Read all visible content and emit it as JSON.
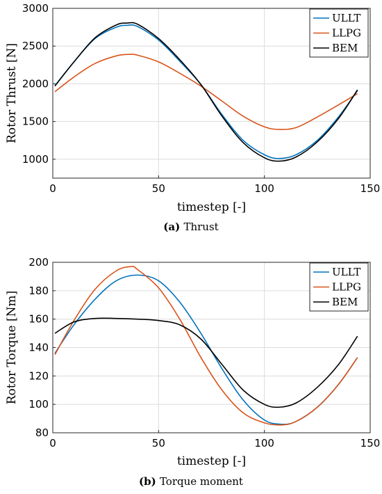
{
  "chart_data": [
    {
      "type": "line",
      "caption_id": "a",
      "caption_text": "Thrust",
      "xlabel": "timestep [-]",
      "ylabel": "Rotor Thrust [N]",
      "xlim": [
        0,
        150
      ],
      "ylim": [
        750,
        3000
      ],
      "xticks": [
        0,
        50,
        100,
        150
      ],
      "yticks": [
        1000,
        1500,
        2000,
        2500,
        3000
      ],
      "grid": true,
      "legend_position": "top-right",
      "series": [
        {
          "name": "ULLT",
          "color": "#0072BD",
          "x": [
            1,
            10,
            20,
            30,
            35,
            40,
            50,
            60,
            70,
            80,
            90,
            100,
            107,
            115,
            125,
            135,
            144
          ],
          "y": [
            1975,
            2290,
            2600,
            2750,
            2775,
            2760,
            2580,
            2300,
            1990,
            1590,
            1250,
            1060,
            1010,
            1060,
            1250,
            1560,
            1910
          ]
        },
        {
          "name": "LLPG",
          "color": "#D95319",
          "x": [
            1,
            10,
            20,
            30,
            36,
            40,
            50,
            60,
            70,
            80,
            90,
            100,
            107,
            115,
            125,
            135,
            144
          ],
          "y": [
            1895,
            2090,
            2270,
            2370,
            2390,
            2380,
            2290,
            2140,
            1970,
            1770,
            1570,
            1430,
            1395,
            1420,
            1560,
            1720,
            1870
          ]
        },
        {
          "name": "BEM",
          "color": "#000000",
          "x": [
            1,
            10,
            20,
            30,
            35,
            40,
            50,
            60,
            70,
            80,
            90,
            100,
            107,
            115,
            125,
            135,
            144
          ],
          "y": [
            1970,
            2290,
            2610,
            2780,
            2805,
            2790,
            2600,
            2320,
            1990,
            1570,
            1220,
            1020,
            975,
            1030,
            1230,
            1540,
            1920
          ]
        }
      ]
    },
    {
      "type": "line",
      "caption_id": "b",
      "caption_text": "Torque moment",
      "xlabel": "timestep [-]",
      "ylabel": "Rotor Torque [Nm]",
      "xlim": [
        0,
        150
      ],
      "ylim": [
        80,
        200
      ],
      "xticks": [
        0,
        50,
        100,
        150
      ],
      "yticks": [
        80,
        100,
        120,
        140,
        160,
        180,
        200
      ],
      "grid": true,
      "legend_position": "top-right",
      "series": [
        {
          "name": "ULLT",
          "color": "#0072BD",
          "x": [
            1,
            10,
            20,
            30,
            40,
            50,
            60,
            70,
            80,
            90,
            100,
            108,
            115,
            125,
            135,
            144
          ],
          "y": [
            136,
            156,
            174,
            187,
            191,
            187,
            172,
            150,
            125,
            103,
            89,
            86,
            88,
            98,
            114,
            133
          ]
        },
        {
          "name": "LLPG",
          "color": "#D95319",
          "x": [
            1,
            10,
            20,
            30,
            37,
            40,
            50,
            60,
            70,
            80,
            90,
            100,
            108,
            115,
            125,
            135,
            144
          ],
          "y": [
            135,
            159,
            181,
            194,
            197,
            195,
            182,
            160,
            133,
            110,
            94,
            87,
            85.5,
            88,
            98,
            114,
            133
          ]
        },
        {
          "name": "BEM",
          "color": "#000000",
          "x": [
            1,
            10,
            20,
            30,
            40,
            50,
            60,
            70,
            80,
            90,
            100,
            107,
            115,
            125,
            135,
            144
          ],
          "y": [
            150,
            158,
            160.5,
            160.5,
            160,
            159,
            156,
            146,
            128,
            110,
            100,
            98,
            101,
            112,
            128,
            148
          ]
        }
      ]
    }
  ]
}
